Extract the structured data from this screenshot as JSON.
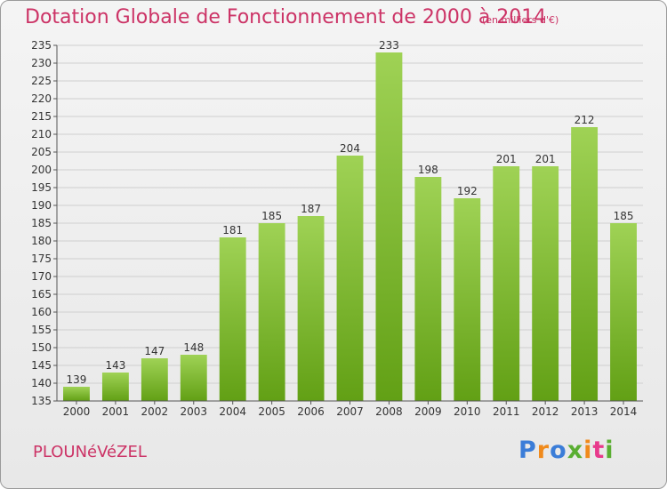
{
  "header": {
    "title": "Dotation Globale de Fonctionnement de 2000 à 2014",
    "subtitle": "(en milliers d'€)"
  },
  "footer": {
    "commune": "PLOUNéVéZEL",
    "logo": "Proxiti",
    "logo_colors": [
      "#3b7dd8",
      "#f08a1c",
      "#3b7dd8",
      "#5aae32",
      "#f08a1c",
      "#e83a8c",
      "#5aae32"
    ]
  },
  "colors": {
    "title": "#cc3366",
    "bar_top": "#9fd255",
    "bar_bottom": "#62a015",
    "grid": "#cfcfcf",
    "axis": "#555555"
  },
  "chart_data": {
    "type": "bar",
    "title": "Dotation Globale de Fonctionnement de 2000 à 2014",
    "subtitle": "(en milliers d'€)",
    "xlabel": "",
    "ylabel": "",
    "categories": [
      "2000",
      "2001",
      "2002",
      "2003",
      "2004",
      "2005",
      "2006",
      "2007",
      "2008",
      "2009",
      "2010",
      "2011",
      "2012",
      "2013",
      "2014"
    ],
    "values": [
      139,
      143,
      147,
      148,
      181,
      185,
      187,
      204,
      233,
      198,
      192,
      201,
      201,
      212,
      185
    ],
    "ylim": [
      135,
      235
    ],
    "ytick_step": 5,
    "grid": true,
    "legend": "none"
  }
}
